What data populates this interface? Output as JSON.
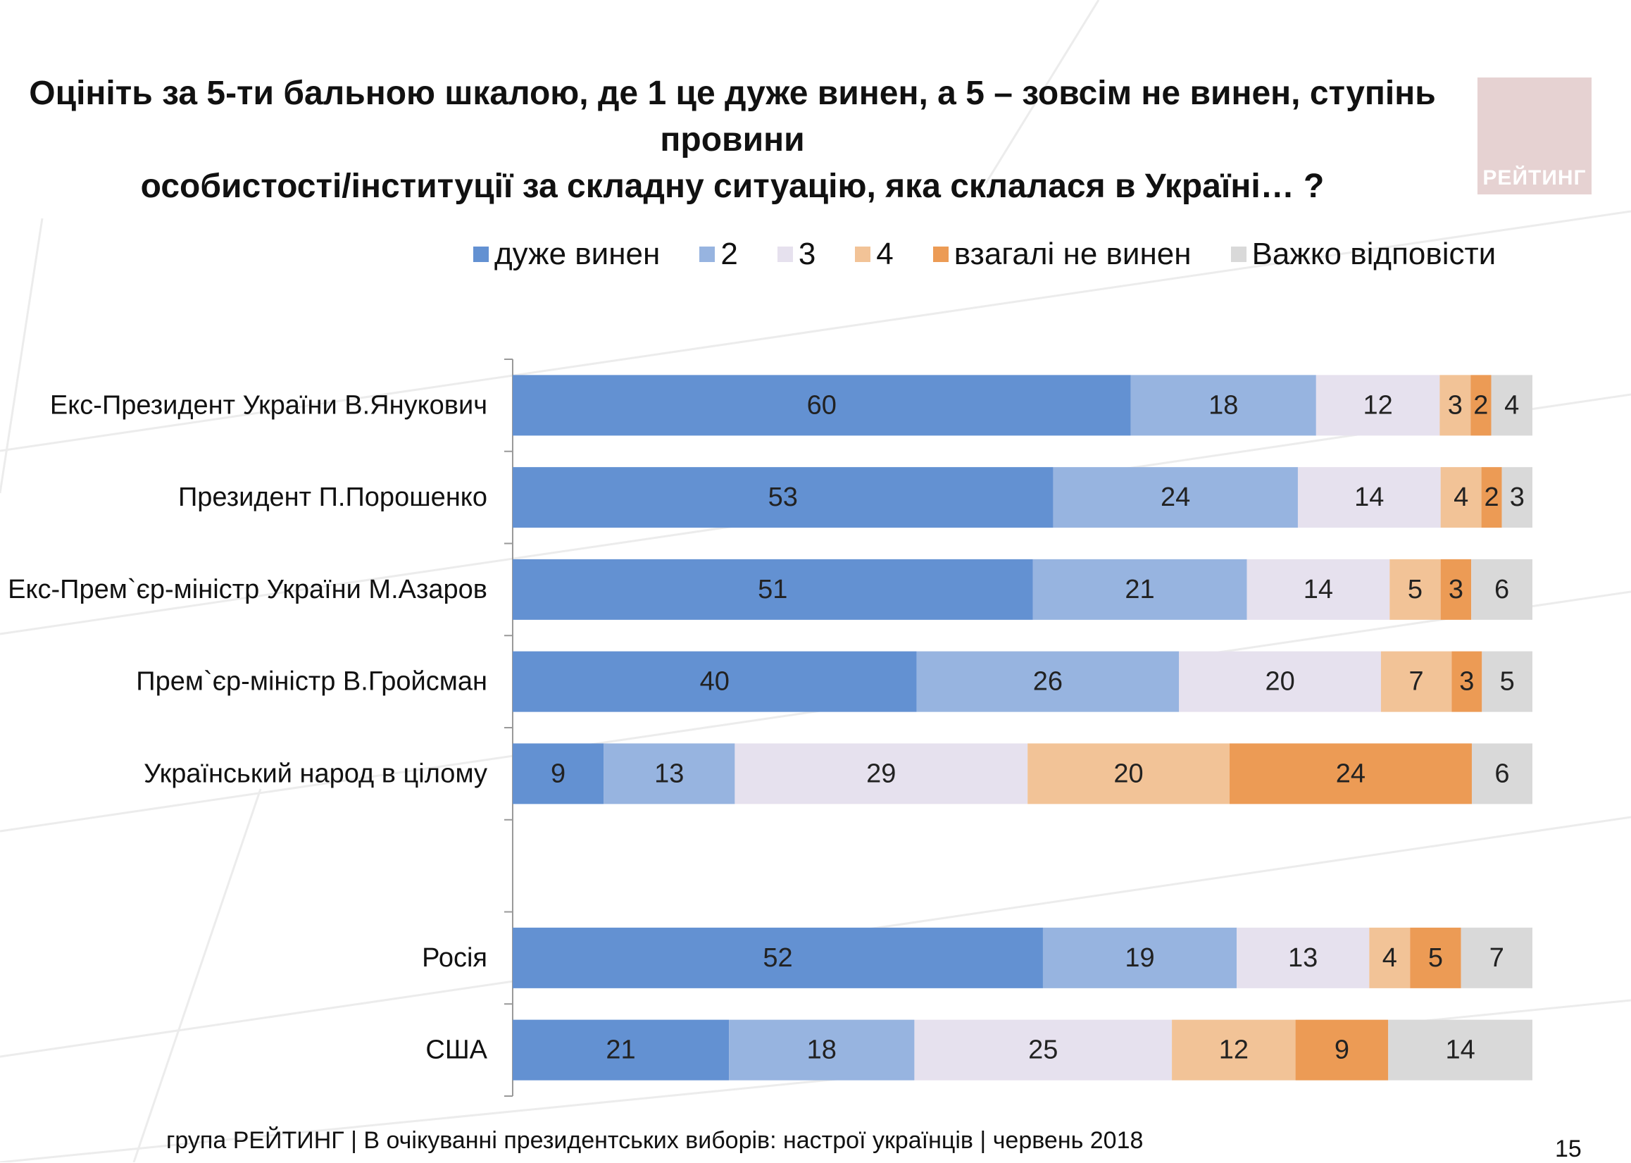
{
  "title": {
    "line1": "Оцініть за 5-ти бальною шкалою, де 1 це дуже винен, а 5 – зовсім не винен, ступінь провини",
    "line2": "особистості/інституції за складну ситуацію, яка склалася в Україні… ?"
  },
  "logo": {
    "text": "РЕЙТИНГ"
  },
  "footer": {
    "text": "група РЕЙТИНГ  | В очікуванні президентських виборів: настрої українців |  червень 2018"
  },
  "page_number": "15",
  "chart_data": {
    "type": "bar",
    "orientation": "horizontal",
    "stacked": true,
    "title": "",
    "xlabel": "",
    "ylabel": "",
    "grid": false,
    "legend_position": "top",
    "categories": [
      "Екс-Президент України В.Янукович",
      "Президент П.Порошенко",
      "Екс-Прем`єр-міністр України М.Азаров",
      "Прем`єр-міністр В.Гройсман",
      "Український народ в цілому",
      "",
      "Росія",
      "США"
    ],
    "series": [
      {
        "name": "дуже винен",
        "color": "#6391d2",
        "values": [
          60,
          53,
          51,
          40,
          9,
          null,
          52,
          21
        ]
      },
      {
        "name": "2",
        "color": "#97b4e0",
        "values": [
          18,
          24,
          21,
          26,
          13,
          null,
          19,
          18
        ]
      },
      {
        "name": "3",
        "color": "#e6e1ee",
        "values": [
          12,
          14,
          14,
          20,
          29,
          null,
          13,
          25
        ]
      },
      {
        "name": "4",
        "color": "#f2c397",
        "values": [
          3,
          4,
          5,
          7,
          20,
          null,
          4,
          12
        ]
      },
      {
        "name": "взагалі не винен",
        "color": "#ec9b55",
        "values": [
          2,
          2,
          3,
          3,
          24,
          null,
          5,
          9
        ]
      },
      {
        "name": "Важко відповісти",
        "color": "#d9d9d9",
        "values": [
          4,
          3,
          6,
          5,
          6,
          null,
          7,
          14
        ]
      }
    ]
  }
}
